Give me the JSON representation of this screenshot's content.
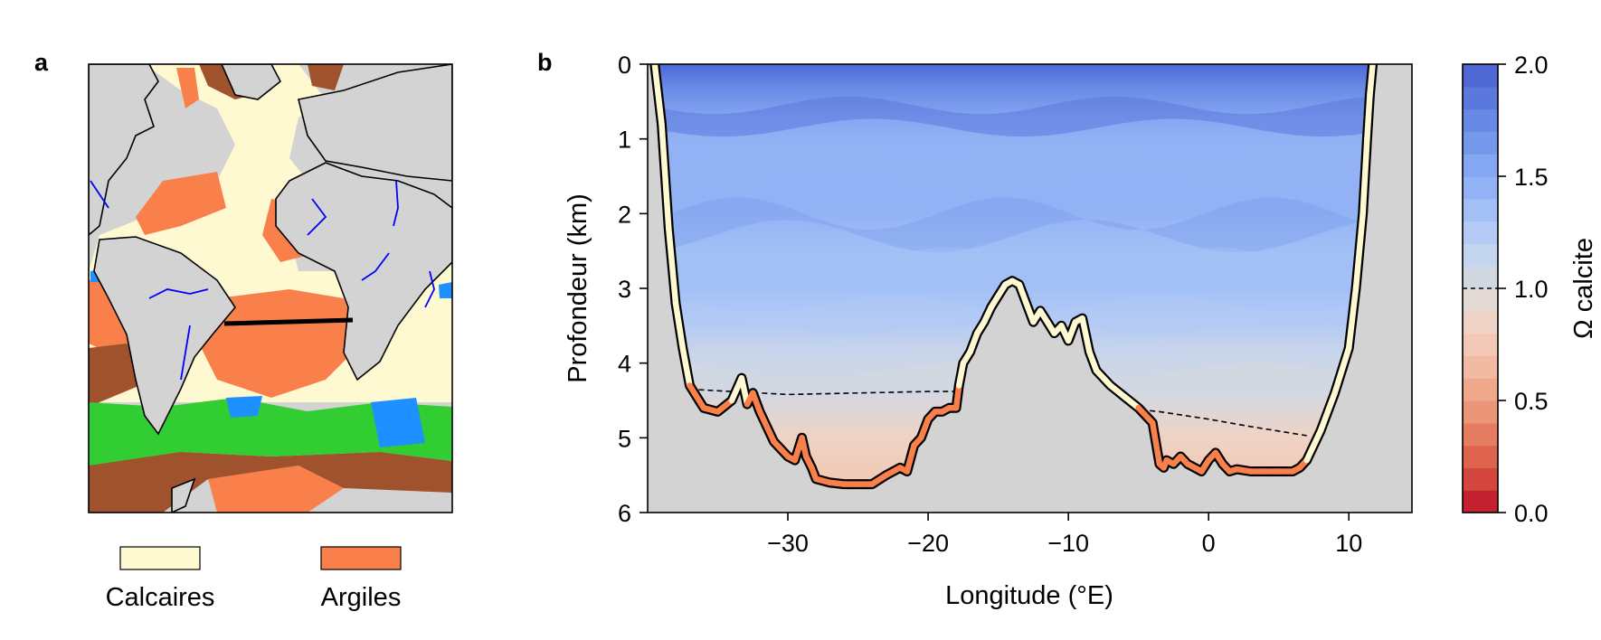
{
  "panels": {
    "a_label": "a",
    "b_label": "b"
  },
  "legend": {
    "items": [
      {
        "label": "Calcaires",
        "color": "#fff9d2"
      },
      {
        "label": "Argiles",
        "color": "#f9804b"
      }
    ]
  },
  "map": {
    "land_color": "#d3d3d3",
    "calcareous_color": "#fff9d2",
    "clay_color": "#f9804b",
    "terrigenous_color": "#a0522d",
    "siliceous_color": "#32cd32",
    "other_color": "#1e90ff",
    "river_color": "#0000ff"
  },
  "chart_data": {
    "type": "heatmap",
    "title": "",
    "xlabel": "Longitude (°E)",
    "ylabel": "Profondeur (km)",
    "xlim": [
      -40,
      14.5
    ],
    "ylim": [
      6,
      0
    ],
    "xticks": [
      -30,
      -20,
      -10,
      0,
      10
    ],
    "xtick_labels": [
      "−30",
      "−20",
      "−10",
      "0",
      "10"
    ],
    "yticks": [
      0,
      1,
      2,
      3,
      4,
      5,
      6
    ],
    "ytick_labels": [
      "0",
      "1",
      "2",
      "3",
      "4",
      "5",
      "6"
    ],
    "colorbar": {
      "label": "Ω calcite",
      "range": [
        0,
        2
      ],
      "ticks": [
        0,
        0.5,
        1,
        1.5,
        2
      ],
      "tick_labels": [
        "0.0",
        "0.5",
        "1.0",
        "1.5",
        "2.0"
      ],
      "colors": [
        "#c42130",
        "#d4473e",
        "#de6450",
        "#e57d63",
        "#eb9579",
        "#efa88c",
        "#f2baa2",
        "#f3c9b5",
        "#eed3c6",
        "#e3d9d4",
        "#d2d8e2",
        "#c4d5ef",
        "#b3cbf5",
        "#a3c0f6",
        "#93b2f5",
        "#85a6f2",
        "#7698eb",
        "#6889e4",
        "#5b79dd",
        "#4f68d4"
      ]
    },
    "saturation_line": {
      "x": [
        -37,
        -30,
        -20,
        -17.5,
        -3.5,
        0,
        3,
        7
      ],
      "y": [
        4.35,
        4.42,
        4.38,
        4.38,
        4.65,
        4.75,
        4.85,
        4.97
      ]
    },
    "bathymetry": {
      "x": [
        -39.5,
        -39,
        -38.5,
        -38,
        -37.5,
        -37,
        -36,
        -35,
        -34,
        -33.3,
        -32.9,
        -32.5,
        -32,
        -31,
        -30,
        -29.5,
        -29,
        -28.7,
        -28.3,
        -28,
        -27,
        -26,
        -25,
        -24,
        -23,
        -22,
        -21.5,
        -21,
        -20.5,
        -20,
        -19.5,
        -19,
        -18.5,
        -18,
        -17.8,
        -17.5,
        -17,
        -16.5,
        -16,
        -15.5,
        -15,
        -14.5,
        -14,
        -13.5,
        -13,
        -12.5,
        -12,
        -11.5,
        -11,
        -10.5,
        -10,
        -9.5,
        -9,
        -8.5,
        -8,
        -7,
        -6,
        -5,
        -4,
        -3.5,
        -3.2,
        -3,
        -2.5,
        -2,
        -1.5,
        -1,
        -0.5,
        0,
        0.5,
        1,
        1.5,
        2,
        3,
        4,
        5,
        6,
        6.5,
        7,
        8,
        9,
        10,
        10.5,
        11,
        11.3,
        11.5,
        11.7
      ],
      "y": [
        0,
        0.8,
        2.2,
        3.2,
        3.8,
        4.3,
        4.6,
        4.65,
        4.5,
        4.2,
        4.55,
        4.4,
        4.65,
        5.05,
        5.25,
        5.3,
        5.0,
        5.25,
        5.4,
        5.55,
        5.6,
        5.62,
        5.62,
        5.62,
        5.5,
        5.4,
        5.45,
        5.1,
        5.0,
        4.75,
        4.65,
        4.65,
        4.6,
        4.6,
        4.3,
        4.0,
        3.85,
        3.6,
        3.45,
        3.25,
        3.1,
        2.95,
        2.9,
        2.95,
        3.2,
        3.45,
        3.3,
        3.45,
        3.6,
        3.5,
        3.7,
        3.45,
        3.4,
        3.85,
        4.1,
        4.3,
        4.45,
        4.6,
        4.8,
        5.35,
        5.4,
        5.3,
        5.35,
        5.25,
        5.35,
        5.4,
        5.45,
        5.3,
        5.2,
        5.35,
        5.45,
        5.42,
        5.45,
        5.45,
        5.45,
        5.45,
        5.4,
        5.3,
        4.9,
        4.4,
        3.8,
        3.0,
        2.0,
        1.0,
        0.4,
        0
      ]
    },
    "omega_profile": {
      "depth_km": [
        0,
        0.3,
        0.7,
        1.0,
        1.5,
        2.0,
        2.5,
        3.0,
        3.5,
        4.0,
        4.4,
        5.0,
        5.6
      ],
      "omega": [
        1.95,
        1.75,
        1.55,
        1.5,
        1.45,
        1.5,
        1.4,
        1.3,
        1.2,
        1.1,
        1.0,
        0.8,
        0.75
      ]
    }
  }
}
